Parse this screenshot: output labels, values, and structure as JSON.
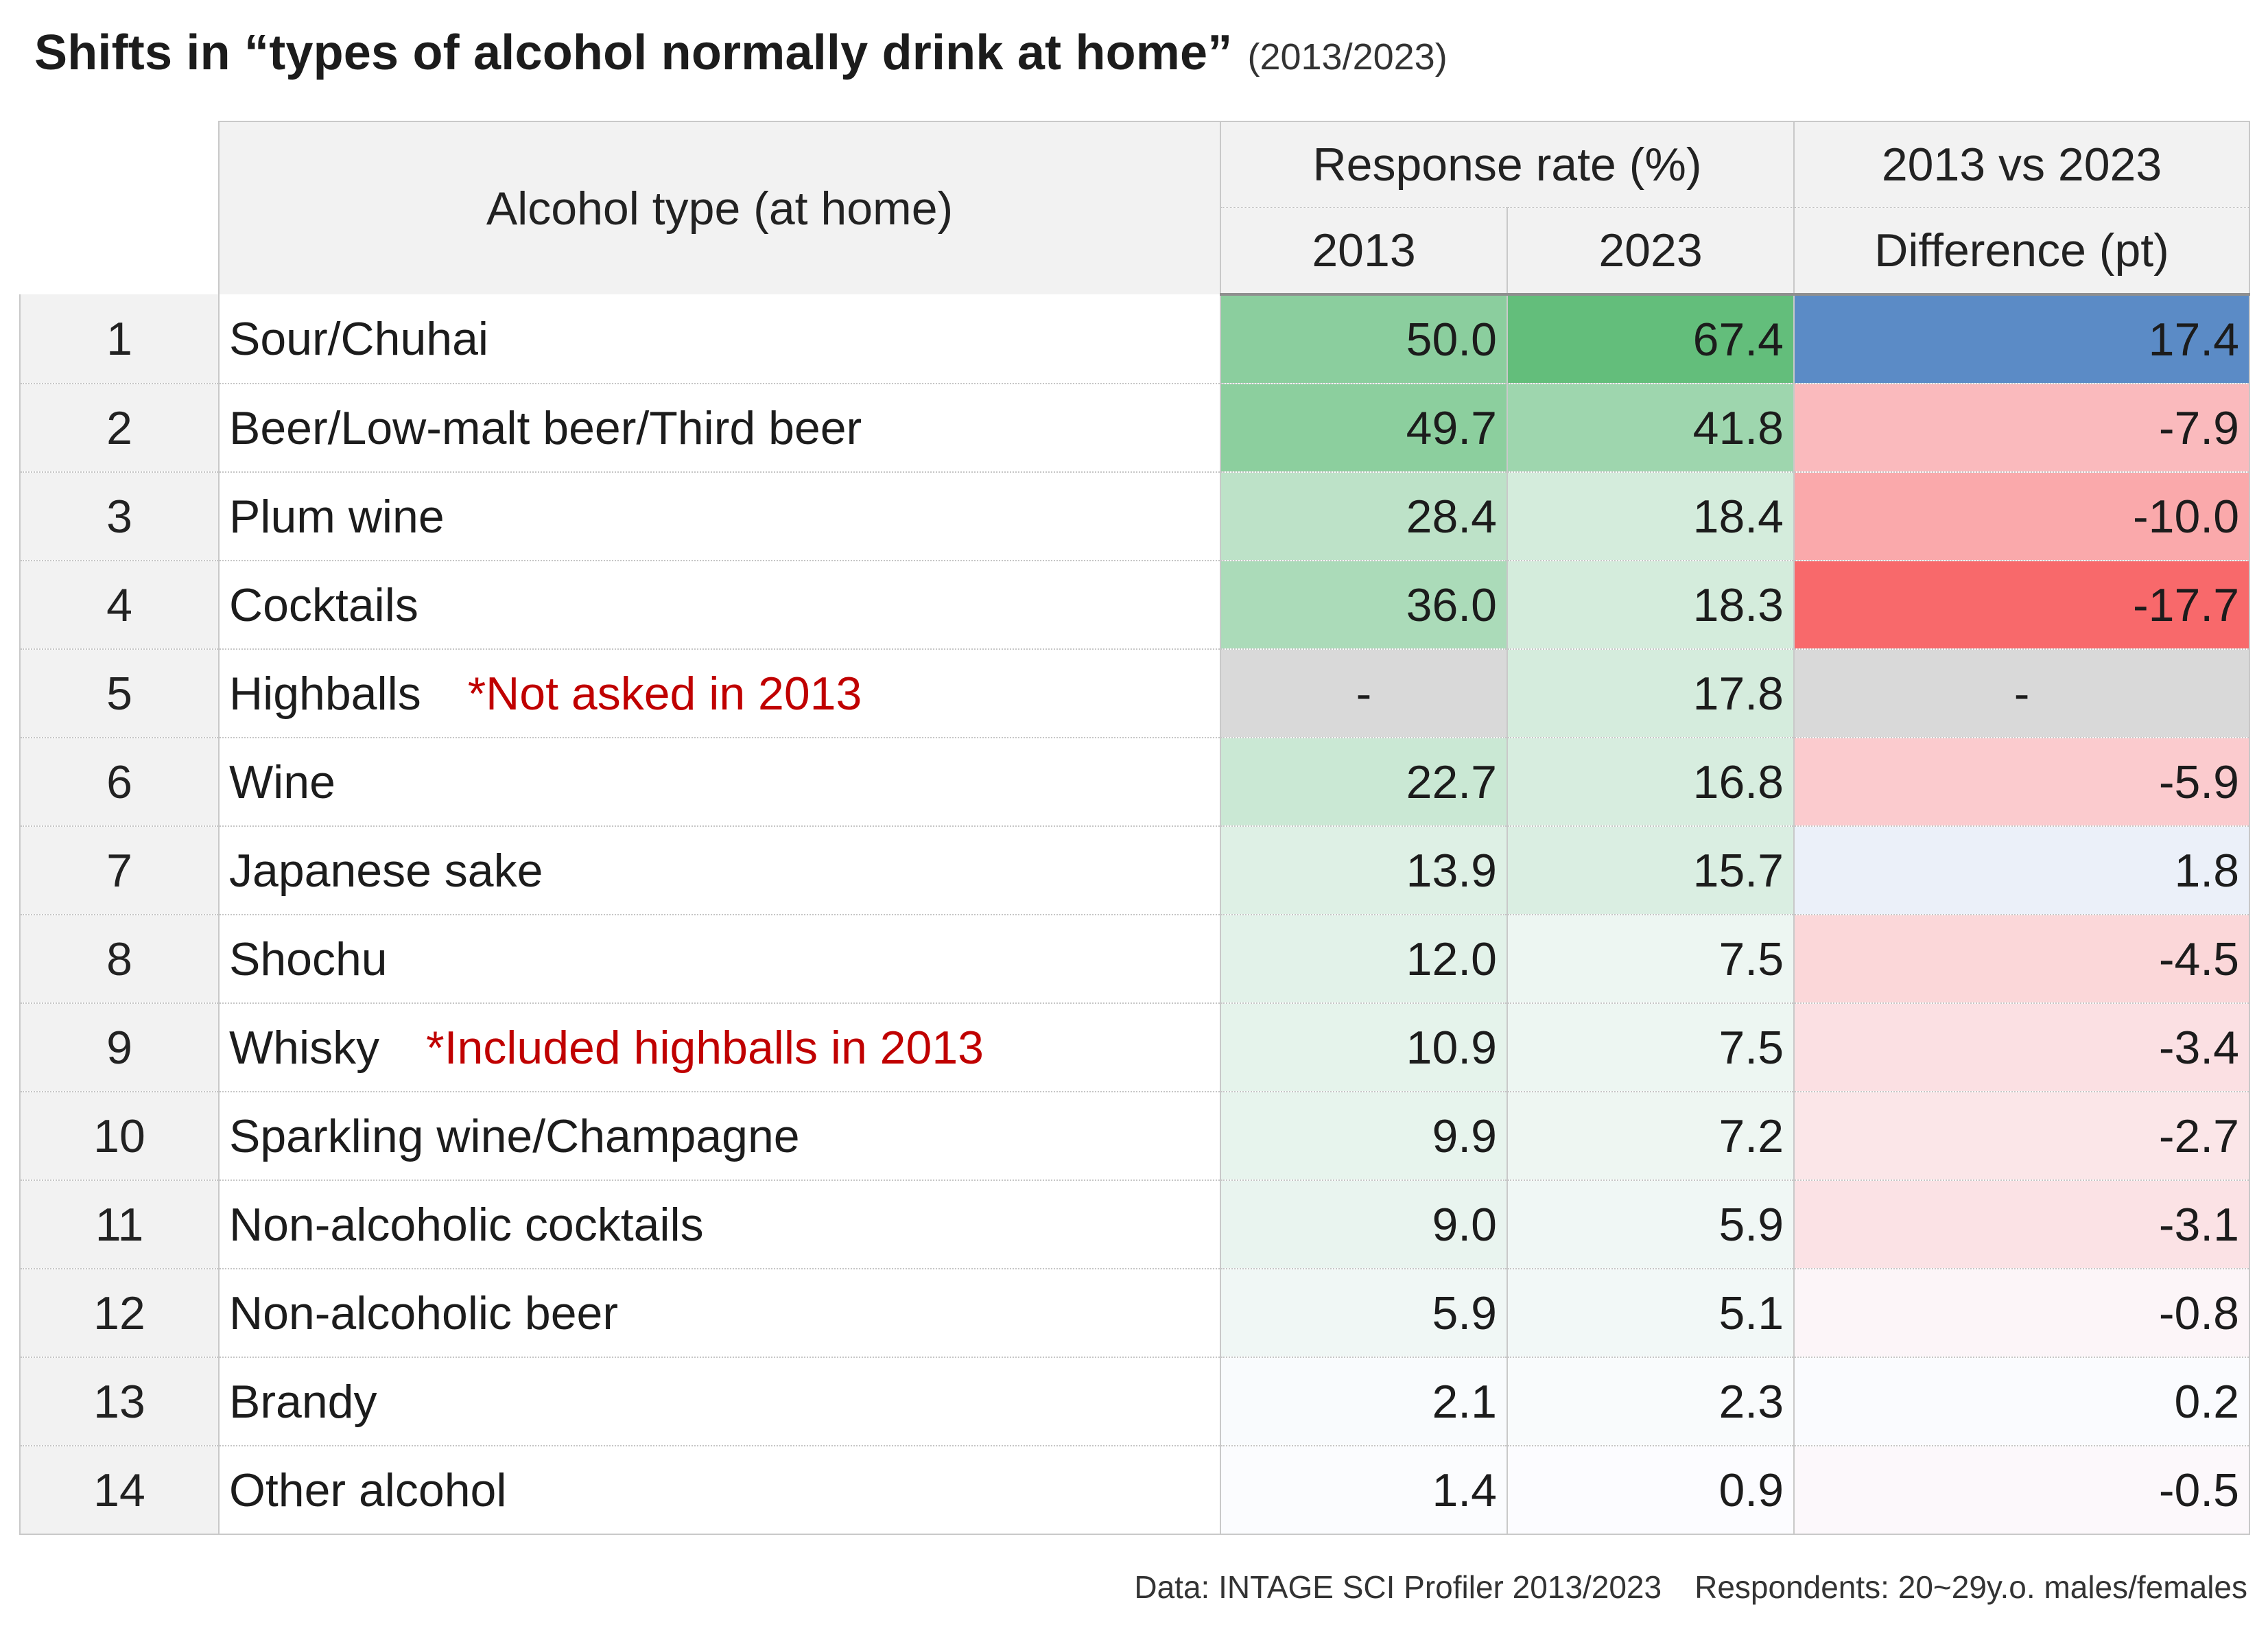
{
  "title": {
    "main": "Shifts in “types of alcohol normally drink at home”",
    "sub": "(2013/2023)"
  },
  "chart_data": {
    "type": "table",
    "title": "Shifts in “types of alcohol normally drink at home” (2013/2023)",
    "headers": {
      "type": "Alcohol type (at home)",
      "response_rate": "Response rate (%)",
      "comparison": "2013 vs 2023",
      "year_2013": "2013",
      "year_2023": "2023",
      "difference": "Difference (pt)"
    },
    "rows": [
      {
        "rank": "1",
        "name": "Sour/Chuhai",
        "note": "",
        "v2013": "50.0",
        "v2023": "67.4",
        "diff": "17.4"
      },
      {
        "rank": "2",
        "name": "Beer/Low-malt beer/Third beer",
        "note": "",
        "v2013": "49.7",
        "v2023": "41.8",
        "diff": "-7.9"
      },
      {
        "rank": "3",
        "name": "Plum wine",
        "note": "",
        "v2013": "28.4",
        "v2023": "18.4",
        "diff": "-10.0"
      },
      {
        "rank": "4",
        "name": "Cocktails",
        "note": "",
        "v2013": "36.0",
        "v2023": "18.3",
        "diff": "-17.7"
      },
      {
        "rank": "5",
        "name": "Highballs",
        "note": "*Not asked in 2013",
        "v2013": "-",
        "v2023": "17.8",
        "diff": "-"
      },
      {
        "rank": "6",
        "name": "Wine",
        "note": "",
        "v2013": "22.7",
        "v2023": "16.8",
        "diff": "-5.9"
      },
      {
        "rank": "7",
        "name": "Japanese sake",
        "note": "",
        "v2013": "13.9",
        "v2023": "15.7",
        "diff": "1.8"
      },
      {
        "rank": "8",
        "name": "Shochu",
        "note": "",
        "v2013": "12.0",
        "v2023": "7.5",
        "diff": "-4.5"
      },
      {
        "rank": "9",
        "name": "Whisky",
        "note": "*Included highballs in 2013",
        "v2013": "10.9",
        "v2023": "7.5",
        "diff": "-3.4"
      },
      {
        "rank": "10",
        "name": "Sparkling wine/Champagne",
        "note": "",
        "v2013": "9.9",
        "v2023": "7.2",
        "diff": "-2.7"
      },
      {
        "rank": "11",
        "name": "Non-alcoholic cocktails",
        "note": "",
        "v2013": "9.0",
        "v2023": "5.9",
        "diff": "-3.1"
      },
      {
        "rank": "12",
        "name": "Non-alcoholic beer",
        "note": "",
        "v2013": "5.9",
        "v2023": "5.1",
        "diff": "-0.8"
      },
      {
        "rank": "13",
        "name": "Brandy",
        "note": "",
        "v2013": "2.1",
        "v2023": "2.3",
        "diff": "0.2"
      },
      {
        "rank": "14",
        "name": "Other alcohol",
        "note": "",
        "v2013": "1.4",
        "v2023": "0.9",
        "diff": "-0.5"
      }
    ],
    "colors": {
      "rate_high": "#63be7b",
      "rate_low": "#fcfcff",
      "diff_positive": "#5b8bc6",
      "diff_negative": "#f8696b",
      "diff_neutral": "#fcfcff",
      "not_asked": "#d9d9d9"
    }
  },
  "footer": {
    "source": "Data: INTAGE SCI Profiler 2013/2023",
    "respondents": "Respondents: 20~29y.o. males/females"
  }
}
